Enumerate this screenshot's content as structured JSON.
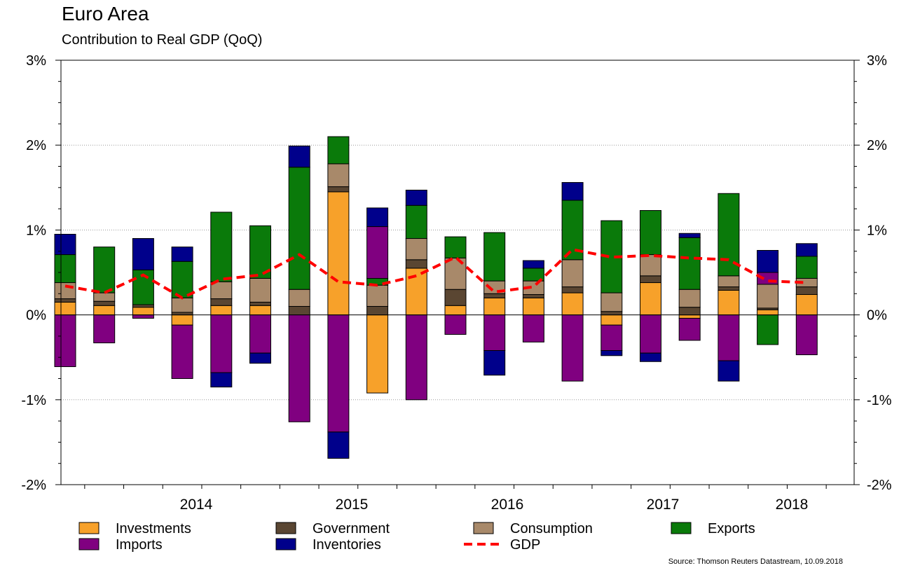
{
  "title": "Euro Area",
  "subtitle": "Contribution to Real GDP (QoQ)",
  "source": "Source: Thomson Reuters Datastream, 10.09.2018",
  "colors": {
    "investments": "#f7a12a",
    "government": "#5a4632",
    "consumption": "#a8896a",
    "exports": "#0a7a0a",
    "imports": "#800080",
    "inventories": "#00008b",
    "gdp": "#ff0000"
  },
  "chart_data": {
    "type": "bar",
    "stacked": true,
    "quarters": [
      "2013Q2",
      "2013Q3",
      "2013Q4",
      "2014Q1",
      "2014Q2",
      "2014Q3",
      "2014Q4",
      "2015Q1",
      "2015Q2",
      "2015Q3",
      "2015Q4",
      "2016Q1",
      "2016Q2",
      "2016Q3",
      "2016Q4",
      "2017Q1",
      "2017Q2",
      "2017Q3",
      "2017Q4",
      "2018Q1",
      "2018Q2"
    ],
    "x_tick_labels": [
      "2014",
      "2015",
      "2016",
      "2017",
      "2018"
    ],
    "y_tick_labels": [
      "3%",
      "2%",
      "1%",
      "0%",
      "-1%",
      "-2%"
    ],
    "ylim": [
      -2,
      3
    ],
    "grid": true,
    "legend_position": "bottom",
    "series": [
      {
        "key": "investments",
        "name": "Investments",
        "values": [
          0.15,
          0.11,
          0.09,
          -0.12,
          0.11,
          0.11,
          0.0,
          1.45,
          -0.92,
          0.55,
          0.11,
          0.2,
          0.2,
          0.26,
          -0.12,
          0.38,
          -0.04,
          0.29,
          0.06,
          0.24,
          0.0
        ]
      },
      {
        "key": "government",
        "name": "Government",
        "values": [
          0.04,
          0.05,
          0.03,
          0.03,
          0.08,
          0.04,
          0.1,
          0.06,
          0.1,
          0.1,
          0.19,
          0.05,
          0.04,
          0.07,
          0.04,
          0.08,
          0.09,
          0.04,
          0.02,
          0.09,
          0.0
        ]
      },
      {
        "key": "consumption",
        "name": "Consumption",
        "values": [
          0.19,
          0.1,
          0.0,
          0.17,
          0.2,
          0.28,
          0.2,
          0.27,
          0.25,
          0.25,
          0.37,
          0.15,
          0.16,
          0.32,
          0.22,
          0.25,
          0.21,
          0.13,
          0.28,
          0.1,
          0.0
        ]
      },
      {
        "key": "exports",
        "name": "Exports",
        "values": [
          0.33,
          0.54,
          0.41,
          0.43,
          0.82,
          0.62,
          1.44,
          0.32,
          0.08,
          0.39,
          0.25,
          0.57,
          0.15,
          0.7,
          0.85,
          0.52,
          0.61,
          0.97,
          -0.35,
          0.26,
          0.0
        ]
      },
      {
        "key": "imports",
        "name": "Imports",
        "values": [
          -0.61,
          -0.33,
          -0.04,
          -0.63,
          -0.68,
          -0.45,
          -1.26,
          -1.38,
          0.61,
          -1.0,
          -0.23,
          -0.42,
          -0.32,
          -0.78,
          -0.3,
          -0.45,
          -0.26,
          -0.54,
          0.14,
          -0.47,
          0.0
        ]
      },
      {
        "key": "inventories",
        "name": "Inventories",
        "values": [
          0.24,
          0.0,
          0.37,
          0.17,
          -0.17,
          -0.12,
          0.25,
          -0.31,
          0.22,
          0.18,
          0.0,
          -0.29,
          0.09,
          0.21,
          -0.06,
          -0.1,
          0.05,
          -0.24,
          0.26,
          0.15,
          0.0
        ]
      }
    ],
    "gdp": {
      "name": "GDP",
      "values": [
        0.34,
        0.26,
        0.47,
        0.2,
        0.42,
        0.47,
        0.71,
        0.39,
        0.35,
        0.46,
        0.68,
        0.27,
        0.33,
        0.77,
        0.68,
        0.7,
        0.67,
        0.65,
        0.4,
        0.38
      ]
    }
  }
}
